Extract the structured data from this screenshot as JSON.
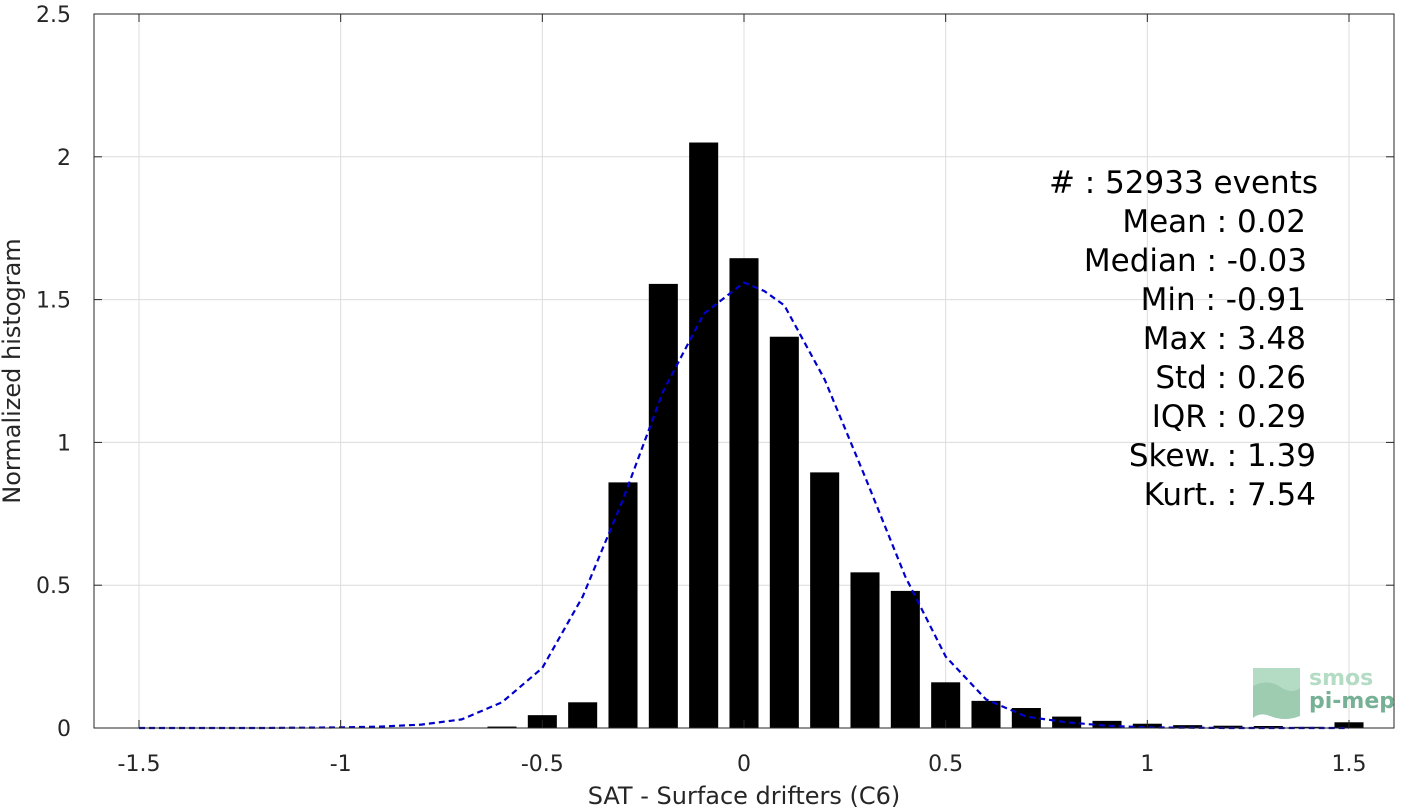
{
  "chart_data": {
    "type": "bar",
    "xlabel": "SAT - Surface drifters (C6)",
    "ylabel": "Normalized histogram",
    "xlim": [
      -1.5,
      1.5
    ],
    "ylim": [
      0,
      2.5
    ],
    "xticks": [
      "-1.5",
      "-1",
      "-0.5",
      "0",
      "0.5",
      "1",
      "1.5"
    ],
    "yticks": [
      "0",
      "0.5",
      "1",
      "1.5",
      "2",
      "2.5"
    ],
    "grid": true,
    "bar_color": "#000000",
    "bins": [
      -0.6,
      -0.5,
      -0.4,
      -0.3,
      -0.2,
      -0.1,
      0.0,
      0.1,
      0.2,
      0.3,
      0.4,
      0.5,
      0.6,
      0.7,
      0.8,
      0.9,
      1.0,
      1.1,
      1.2,
      1.3,
      1.4,
      1.5
    ],
    "values": [
      0.005,
      0.045,
      0.09,
      0.86,
      1.555,
      2.05,
      1.645,
      1.37,
      0.895,
      0.545,
      0.48,
      0.16,
      0.095,
      0.07,
      0.04,
      0.025,
      0.015,
      0.01,
      0.008,
      0.007,
      0.004,
      0.02
    ],
    "fit": {
      "style": "dashed",
      "color": "#0000cc",
      "x": [
        -1.5,
        -1.2,
        -1.0,
        -0.9,
        -0.8,
        -0.7,
        -0.6,
        -0.5,
        -0.4,
        -0.3,
        -0.2,
        -0.1,
        0.0,
        0.05,
        0.1,
        0.2,
        0.3,
        0.4,
        0.5,
        0.6,
        0.7,
        0.8,
        0.9,
        1.0,
        1.2,
        1.5
      ],
      "y": [
        0.0,
        0.0,
        0.002,
        0.005,
        0.012,
        0.03,
        0.09,
        0.21,
        0.46,
        0.8,
        1.18,
        1.45,
        1.56,
        1.53,
        1.48,
        1.22,
        0.88,
        0.53,
        0.25,
        0.1,
        0.04,
        0.02,
        0.008,
        0.002,
        0.0,
        0.0
      ]
    }
  },
  "stats": [
    {
      "text": "#  : 52933 events"
    },
    {
      "text": "Mean : 0.02"
    },
    {
      "text": "Median : -0.03"
    },
    {
      "text": "Min : -0.91"
    },
    {
      "text": "Max : 3.48"
    },
    {
      "text": "Std : 0.26"
    },
    {
      "text": "IQR : 0.29"
    },
    {
      "text": "Skew. : 1.39"
    },
    {
      "text": "Kurt. : 7.54"
    }
  ],
  "logo": {
    "line1": "smos",
    "line2": "pi-mep",
    "color1": "#a8d5ba",
    "color2": "#5fa383"
  }
}
